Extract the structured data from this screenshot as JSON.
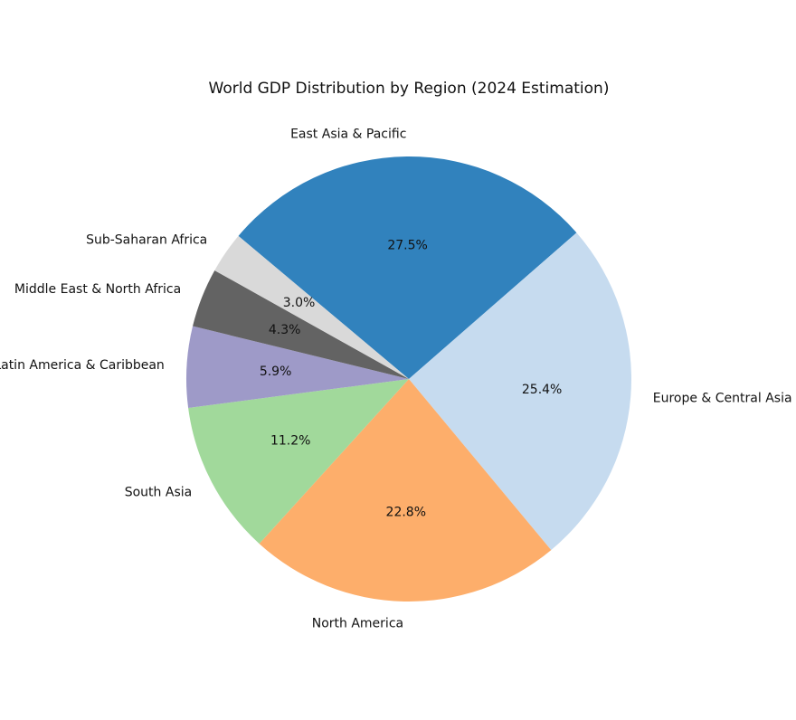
{
  "chart_data": {
    "type": "pie",
    "title": "World GDP Distribution by Region (2024 Estimation)",
    "start_angle_deg": 140,
    "direction": "clockwise",
    "slices": [
      {
        "label": "East Asia & Pacific",
        "value": 27.5,
        "pct_label": "27.5%",
        "color": "#3182bd"
      },
      {
        "label": "Europe & Central Asia",
        "value": 25.4,
        "pct_label": "25.4%",
        "color": "#c6dbef"
      },
      {
        "label": "North America",
        "value": 22.8,
        "pct_label": "22.8%",
        "color": "#fdae6b"
      },
      {
        "label": "South Asia",
        "value": 11.2,
        "pct_label": "11.2%",
        "color": "#a1d99b"
      },
      {
        "label": "Latin America & Caribbean",
        "value": 5.9,
        "pct_label": "5.9%",
        "color": "#9e9ac8"
      },
      {
        "label": "Middle East & North Africa",
        "value": 4.3,
        "pct_label": "4.3%",
        "color": "#636363"
      },
      {
        "label": "Sub-Saharan Africa",
        "value": 3.0,
        "pct_label": "3.0%",
        "color": "#d9d9d9"
      }
    ]
  }
}
